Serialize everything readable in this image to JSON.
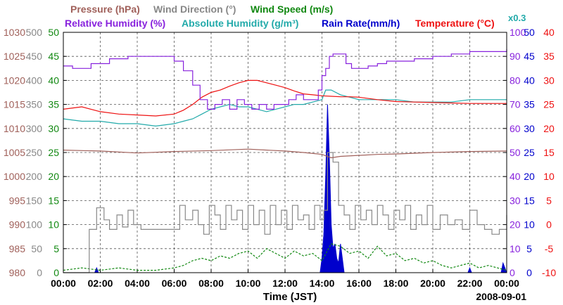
{
  "chart_data": {
    "type": "line",
    "date_label": "2008-09-01",
    "xlabel": "Time (JST)",
    "x_ticks": [
      "00:00",
      "02:00",
      "04:00",
      "06:00",
      "08:00",
      "10:00",
      "12:00",
      "14:00",
      "16:00",
      "18:00",
      "20:00",
      "22:00",
      "00:00"
    ],
    "x_range_hours": [
      0,
      24
    ],
    "legend": {
      "row1": [
        {
          "id": "pressure",
          "label": "Pressure (hPa)",
          "color": "#a0605a"
        },
        {
          "id": "wind_direction",
          "label": "Wind Direction (°)",
          "color": "#888888"
        },
        {
          "id": "wind_speed",
          "label": "Wind Speed (m/s)",
          "color": "#118811"
        }
      ],
      "row2": [
        {
          "id": "relative_humidity",
          "label": "Relative Humidity (%)",
          "color": "#8822dd"
        },
        {
          "id": "absolute_humidity",
          "label": "Absolute Humidity (g/m³)",
          "color": "#22aaaa"
        },
        {
          "id": "rain_rate",
          "label": "Rain Rate(mm/h)",
          "color": "#0000cc"
        },
        {
          "id": "temperature",
          "label": "Temperature (°C)",
          "color": "#ee1111"
        }
      ],
      "abs_humidity_scale_note": "x0.3"
    },
    "axes": {
      "pressure": {
        "range": [
          980,
          1030
        ],
        "ticks": [
          "980",
          "985",
          "990",
          "995",
          "1000",
          "1005",
          "1010",
          "1015",
          "1020",
          "1025",
          "1030"
        ],
        "color": "#a0605a"
      },
      "wind_direction": {
        "range": [
          0,
          500
        ],
        "ticks": [
          "0",
          "50",
          "100",
          "150",
          "200",
          "250",
          "300",
          "350",
          "400",
          "450",
          "500"
        ],
        "color": "#888888"
      },
      "wind_speed": {
        "range": [
          0,
          50
        ],
        "ticks": [
          "0",
          "5",
          "10",
          "15",
          "20",
          "25",
          "30",
          "35",
          "40",
          "45",
          "50"
        ],
        "color": "#118811"
      },
      "relative_humidity": {
        "range": [
          0,
          100
        ],
        "ticks": [
          "0",
          "10",
          "20",
          "30",
          "40",
          "50",
          "60",
          "70",
          "80",
          "90",
          "100"
        ],
        "color": "#8822dd"
      },
      "rain_rate": {
        "range": [
          0,
          50
        ],
        "ticks": [
          "0",
          "5",
          "10",
          "15",
          "20",
          "25",
          "30",
          "35",
          "40",
          "45",
          "50"
        ],
        "color": "#0000cc"
      },
      "temperature": {
        "range": [
          -10,
          40
        ],
        "ticks": [
          "-10",
          "-5",
          "0",
          "5",
          "10",
          "15",
          "20",
          "25",
          "30",
          "35",
          "40"
        ],
        "color": "#ee1111"
      }
    },
    "series": [
      {
        "name": "Relative Humidity",
        "axis": "relative_humidity",
        "color": "#8822dd",
        "step": true,
        "x": [
          0,
          0.5,
          1.5,
          2.5,
          3.5,
          4.5,
          5.5,
          6.0,
          6.5,
          7.0,
          7.4,
          7.8,
          8.2,
          8.6,
          9.0,
          9.4,
          9.8,
          10.2,
          10.6,
          11.0,
          11.4,
          11.8,
          12.2,
          12.6,
          13.0,
          13.4,
          13.8,
          14.0,
          14.2,
          14.4,
          14.6,
          14.8,
          15.0,
          15.3,
          15.6,
          16.0,
          16.5,
          17.0,
          17.5,
          18.0,
          19.0,
          20.0,
          21.0,
          22.0,
          23.0,
          24.0
        ],
        "y": [
          86,
          85,
          87,
          89,
          90,
          90,
          90,
          88,
          84,
          78,
          72,
          68,
          70,
          72,
          68,
          72,
          70,
          68,
          70,
          68,
          70,
          70,
          72,
          74,
          72,
          72,
          76,
          82,
          85,
          90,
          91,
          91,
          91,
          87,
          85,
          85,
          86,
          87,
          88,
          88,
          89,
          90,
          91,
          92,
          92,
          93
        ]
      },
      {
        "name": "Absolute Humidity",
        "axis": "relative_humidity",
        "color": "#22aaaa",
        "step": false,
        "x": [
          0,
          1,
          2,
          3,
          4,
          5,
          6,
          6.5,
          7,
          7.5,
          8,
          8.5,
          9,
          9.5,
          10,
          10.5,
          11,
          11.5,
          12,
          12.5,
          13,
          13.5,
          14,
          14.2,
          14.5,
          15,
          15.5,
          16,
          17,
          18,
          19,
          20,
          21,
          22,
          23,
          24
        ],
        "y": [
          64,
          63,
          63,
          62,
          62,
          61,
          62,
          63,
          64,
          66,
          68,
          69,
          70,
          69,
          69,
          68,
          67,
          68,
          69,
          70,
          70,
          71,
          72,
          76,
          76,
          74,
          73,
          72,
          72,
          72,
          71,
          71,
          71,
          72,
          72,
          72
        ]
      },
      {
        "name": "Temperature",
        "axis": "temperature",
        "color": "#ee1111",
        "step": false,
        "x": [
          0,
          1,
          2,
          3,
          4,
          5,
          6,
          6.5,
          7,
          7.5,
          8,
          8.5,
          9,
          9.5,
          10,
          10.5,
          11,
          11.5,
          12,
          12.5,
          13,
          13.5,
          14,
          14.5,
          15,
          15.5,
          16,
          17,
          18,
          19,
          20,
          21,
          22,
          23,
          24
        ],
        "y": [
          24,
          24.5,
          23.5,
          23,
          22.8,
          22.6,
          23,
          23.8,
          25,
          26.5,
          27.5,
          28,
          28.8,
          29.5,
          30,
          30,
          29.5,
          29,
          28.5,
          27.8,
          27.2,
          27,
          26.8,
          26.7,
          26.6,
          26.6,
          26.5,
          26,
          25.6,
          25.5,
          25.4,
          25.3,
          25.2,
          25.2,
          25.2
        ]
      },
      {
        "name": "Pressure",
        "axis": "pressure",
        "color": "#a0605a",
        "step": false,
        "x": [
          0,
          2,
          4,
          6,
          8,
          10,
          12,
          13,
          14,
          14.5,
          15,
          16,
          17,
          18,
          20,
          22,
          24
        ],
        "y": [
          1005.5,
          1005.3,
          1004.9,
          1005.2,
          1005.4,
          1005.7,
          1005.3,
          1005.0,
          1004.6,
          1003.9,
          1004.2,
          1004.4,
          1004.6,
          1004.7,
          1005.0,
          1005.2,
          1005.3
        ]
      },
      {
        "name": "Wind Direction",
        "axis": "wind_direction",
        "color": "#888888",
        "step": true,
        "x": [
          0,
          1.4,
          1.8,
          2.2,
          2.5,
          2.9,
          3.2,
          3.5,
          3.8,
          4.2,
          5,
          6,
          6.3,
          6.6,
          7.0,
          7.3,
          7.6,
          7.9,
          8.2,
          8.5,
          8.8,
          9.1,
          9.4,
          9.7,
          10.0,
          10.3,
          10.6,
          10.9,
          11.2,
          11.5,
          11.8,
          12.1,
          12.4,
          12.7,
          13.0,
          13.3,
          13.6,
          13.9,
          14.1,
          14.3,
          14.6,
          14.9,
          15.2,
          15.5,
          15.8,
          16.1,
          16.4,
          16.7,
          17.0,
          17.3,
          17.6,
          17.9,
          18.2,
          18.5,
          18.8,
          19.1,
          19.4,
          19.7,
          20.0,
          20.4,
          20.8,
          21.2,
          21.6,
          22.0,
          22.4,
          22.8,
          23.2,
          23.6,
          24.0
        ],
        "y": [
          0,
          90,
          135,
          110,
          90,
          120,
          95,
          130,
          100,
          90,
          90,
          90,
          140,
          110,
          130,
          100,
          80,
          140,
          120,
          90,
          140,
          110,
          130,
          90,
          140,
          100,
          130,
          80,
          140,
          100,
          130,
          90,
          140,
          110,
          120,
          90,
          140,
          110,
          130,
          250,
          230,
          140,
          120,
          90,
          140,
          110,
          130,
          100,
          140,
          120,
          90,
          130,
          110,
          140,
          90,
          120,
          100,
          140,
          90,
          120,
          100,
          110,
          90,
          130,
          100,
          90,
          80,
          90,
          120
        ]
      },
      {
        "name": "Wind Speed",
        "axis": "wind_speed",
        "color": "#118811",
        "step": false,
        "dashed": true,
        "x": [
          0,
          1,
          2,
          3,
          4,
          5,
          6,
          6.5,
          7,
          7.5,
          8,
          8.5,
          9,
          9.5,
          10,
          10.5,
          11,
          11.5,
          12,
          12.5,
          13,
          13.5,
          14,
          14.5,
          15,
          15.5,
          16,
          16.5,
          17,
          17.5,
          18,
          18.5,
          19,
          19.5,
          20,
          20.5,
          21,
          21.5,
          22,
          22.5,
          23,
          23.5,
          24
        ],
        "y": [
          0.5,
          1,
          0.5,
          1,
          0.5,
          0.5,
          1,
          1.5,
          2.5,
          3,
          2.5,
          3.5,
          3,
          4,
          4.5,
          3,
          5,
          4,
          3,
          4.5,
          3.5,
          4,
          2.5,
          6,
          5.5,
          4,
          4.5,
          3,
          5.5,
          3.5,
          4,
          2.5,
          3,
          2,
          2.5,
          1.5,
          1,
          1.5,
          2,
          1,
          1.5,
          1,
          0.5
        ]
      },
      {
        "name": "Rain Rate",
        "axis": "rain_rate",
        "color": "#0000cc",
        "fill": true,
        "x": [
          0,
          1.7,
          1.8,
          1.9,
          13.9,
          14.0,
          14.1,
          14.2,
          14.3,
          14.4,
          14.5,
          14.6,
          14.7,
          14.8,
          14.9,
          15.0,
          15.1,
          15.2,
          21.9,
          22.0,
          22.1,
          23.7,
          23.8,
          23.9,
          24.0
        ],
        "y": [
          0,
          0,
          1,
          0,
          0,
          3,
          8,
          20,
          35,
          24,
          10,
          5,
          6,
          3,
          2,
          6,
          3,
          0,
          0,
          1,
          0,
          0,
          2,
          1,
          0
        ]
      }
    ]
  }
}
